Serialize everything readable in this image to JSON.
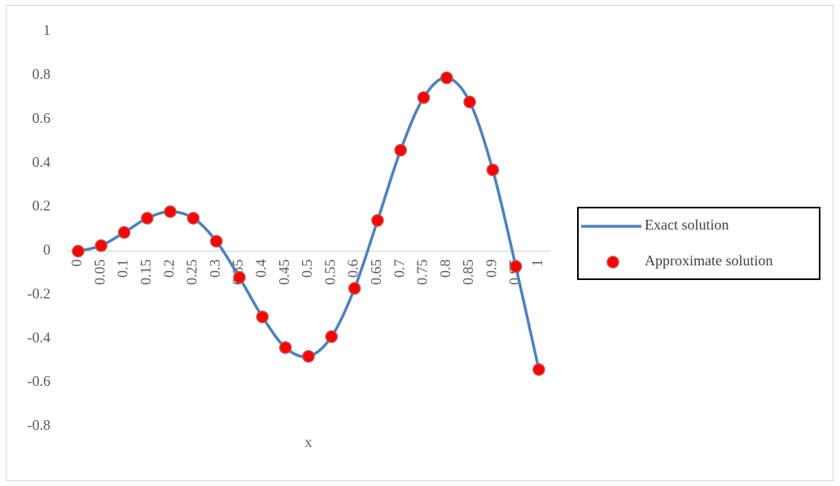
{
  "chart_data": {
    "type": "line",
    "x_label": "x",
    "categories": [
      "0",
      "0.05",
      "0.1",
      "0.15",
      "0.2",
      "0.25",
      "0.3",
      "0.35",
      "0.4",
      "0.45",
      "0.5",
      "0.55",
      "0.6",
      "0.65",
      "0.7",
      "0.75",
      "0.8",
      "0.85",
      "0.9",
      "0.95",
      "1"
    ],
    "series": [
      {
        "name": "Exact solution",
        "color": "#4f81bd",
        "style": "smooth-line",
        "values": [
          0,
          0.025,
          0.085,
          0.15,
          0.18,
          0.15,
          0.045,
          -0.12,
          -0.3,
          -0.44,
          -0.48,
          -0.39,
          -0.17,
          0.14,
          0.46,
          0.7,
          0.79,
          0.68,
          0.37,
          -0.07,
          -0.54
        ]
      },
      {
        "name": "Approximate solution",
        "color": "#ff0000",
        "style": "markers",
        "values": [
          0,
          0.025,
          0.085,
          0.15,
          0.18,
          0.15,
          0.045,
          -0.12,
          -0.3,
          -0.44,
          -0.48,
          -0.39,
          -0.17,
          0.14,
          0.46,
          0.7,
          0.79,
          0.68,
          0.37,
          -0.07,
          -0.54
        ]
      }
    ],
    "ylim": [
      -0.8,
      1
    ],
    "yticks": [
      -0.8,
      -0.6,
      -0.4,
      -0.2,
      0,
      0.2,
      0.4,
      0.6,
      0.8,
      1
    ],
    "grid": false,
    "legend": "right"
  }
}
